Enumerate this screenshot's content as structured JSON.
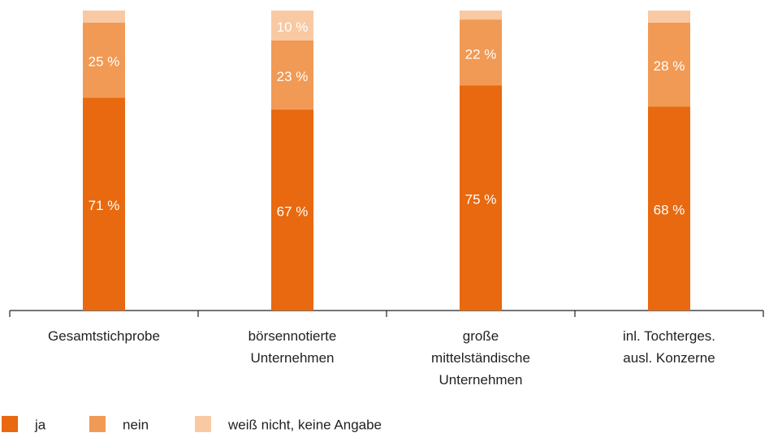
{
  "chart_data": {
    "type": "stacked-bar",
    "categories": [
      "Gesamtstichprobe",
      "börsennotierte\nUnternehmen",
      "große\nmittelständische\nUnternehmen",
      "inl. Tochterges.\nausl. Konzerne"
    ],
    "series": [
      {
        "name": "ja",
        "color": "#e8690f",
        "values": [
          71,
          67,
          75,
          68
        ],
        "value_labels": [
          "71 %",
          "67 %",
          "75 %",
          "68 %"
        ]
      },
      {
        "name": "nein",
        "color": "#f19a55",
        "values": [
          25,
          23,
          22,
          28
        ],
        "value_labels": [
          "25 %",
          "23 %",
          "22 %",
          "28 %"
        ]
      },
      {
        "name": "weiß nicht, keine Angabe",
        "color": "#f8c9a2",
        "values": [
          4,
          10,
          3,
          4
        ],
        "value_labels": [
          null,
          "10 %",
          null,
          null
        ]
      }
    ],
    "ylim": [
      0,
      100
    ]
  }
}
